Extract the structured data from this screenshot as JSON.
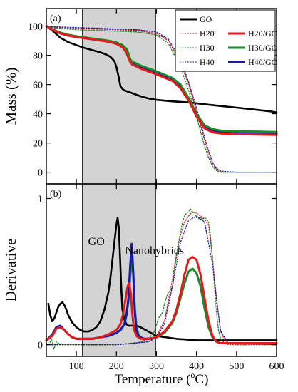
{
  "figure": {
    "x_axis_label_prefix": "Temperature (",
    "x_axis_label_sup": "o",
    "x_axis_label_suffix": "C)",
    "shaded_region": [
      115,
      298
    ],
    "colors": {
      "GO": "#000000",
      "H20": "#e41a1c",
      "H30": "#1a8a2a",
      "H40": "#1a1aaa"
    }
  },
  "chart_data": [
    {
      "type": "line",
      "panel_label": "(a)",
      "ylabel": "Mass (%)",
      "xlim": [
        25,
        600
      ],
      "ylim": [
        -8,
        112
      ],
      "x_ticks": [
        100,
        200,
        300,
        400,
        500,
        600
      ],
      "y_ticks": [
        0,
        20,
        40,
        60,
        80,
        100
      ],
      "grid": false,
      "legend_position": "top-right",
      "legend": [
        {
          "label": "GO",
          "series": "GO"
        },
        {
          "label": "H20",
          "series": "H20"
        },
        {
          "label": "H20/GO",
          "series": "H20/GO"
        },
        {
          "label": "H30",
          "series": "H30"
        },
        {
          "label": "H30/GO",
          "series": "H30/GO"
        },
        {
          "label": "H40",
          "series": "H40"
        },
        {
          "label": "H40/GO",
          "series": "H40/GO"
        }
      ],
      "series": [
        {
          "name": "GO",
          "color": "#000000",
          "style": "solid",
          "x": [
            25,
            40,
            60,
            80,
            100,
            120,
            140,
            160,
            175,
            185,
            195,
            200,
            205,
            210,
            215,
            220,
            240,
            260,
            280,
            300,
            340,
            380,
            420,
            460,
            500,
            540,
            580,
            600
          ],
          "y": [
            100,
            97,
            92,
            89,
            87,
            85,
            83.5,
            82,
            80.5,
            79,
            76,
            72,
            66,
            59,
            57,
            56,
            54,
            52,
            50.5,
            49.5,
            48.5,
            47.8,
            46.5,
            45.3,
            44.2,
            43,
            41.8,
            41
          ]
        },
        {
          "name": "H20",
          "color": "#e41a1c",
          "style": "dotted",
          "x": [
            25,
            50,
            100,
            200,
            250,
            300,
            330,
            360,
            380,
            400,
            410,
            420,
            430,
            440,
            450,
            460,
            470,
            500,
            600
          ],
          "y": [
            100,
            99,
            98.5,
            97.5,
            97,
            95,
            90,
            75,
            60,
            42,
            32,
            22,
            13,
            6,
            2,
            0.5,
            0,
            0,
            0
          ]
        },
        {
          "name": "H30",
          "color": "#1a8a2a",
          "style": "dotted",
          "x": [
            25,
            50,
            100,
            200,
            250,
            300,
            330,
            360,
            380,
            400,
            410,
            420,
            430,
            440,
            450,
            460,
            470,
            500,
            600
          ],
          "y": [
            100,
            98.5,
            97.5,
            96.5,
            96,
            94,
            88,
            72,
            56,
            38,
            28,
            18,
            10,
            4,
            1,
            0,
            0,
            0,
            0
          ]
        },
        {
          "name": "H40",
          "color": "#1a1aaa",
          "style": "dotted",
          "x": [
            25,
            50,
            100,
            200,
            250,
            300,
            330,
            360,
            380,
            400,
            410,
            420,
            430,
            440,
            450,
            460,
            470,
            500,
            600
          ],
          "y": [
            100,
            99.5,
            99,
            98,
            97.5,
            96,
            91,
            77,
            62,
            44,
            34,
            24,
            15,
            7,
            2.5,
            1,
            0.5,
            0,
            0
          ]
        },
        {
          "name": "H40/GO",
          "color": "#1a1aaa",
          "style": "solid",
          "x": [
            25,
            40,
            60,
            80,
            100,
            140,
            180,
            200,
            215,
            225,
            230,
            235,
            240,
            245,
            260,
            300,
            340,
            360,
            380,
            390,
            400,
            420,
            440,
            460,
            500,
            550,
            600
          ],
          "y": [
            100,
            97.5,
            95,
            93.5,
            92.5,
            91,
            89.5,
            88,
            86,
            83.5,
            80,
            76,
            74.5,
            74,
            72,
            68,
            63.5,
            59,
            50,
            45,
            39,
            31,
            28.5,
            27.5,
            27,
            26.8,
            26.5
          ]
        },
        {
          "name": "H30/GO",
          "color": "#1a8a2a",
          "style": "solid",
          "x": [
            25,
            40,
            60,
            80,
            100,
            140,
            180,
            200,
            215,
            225,
            230,
            235,
            240,
            245,
            260,
            300,
            340,
            360,
            380,
            390,
            400,
            420,
            440,
            460,
            500,
            550,
            600
          ],
          "y": [
            100,
            97.8,
            95.5,
            94,
            93,
            91.5,
            90,
            88.8,
            87,
            84.5,
            81,
            77,
            75.5,
            75,
            73,
            69,
            64.5,
            60,
            51,
            45.5,
            40,
            32,
            29.5,
            28.5,
            28,
            27.8,
            27.5
          ]
        },
        {
          "name": "H20/GO",
          "color": "#e41a1c",
          "style": "solid",
          "x": [
            25,
            40,
            60,
            80,
            100,
            140,
            180,
            200,
            215,
            225,
            230,
            235,
            240,
            245,
            260,
            300,
            340,
            360,
            380,
            390,
            400,
            420,
            440,
            460,
            500,
            550,
            600
          ],
          "y": [
            100,
            97.5,
            95,
            93.5,
            92.5,
            91,
            89.3,
            87.8,
            85.5,
            82,
            78,
            75,
            73.5,
            73,
            71,
            67,
            62.5,
            57.5,
            49,
            44,
            38,
            30,
            27.3,
            26.5,
            26,
            25.8,
            25.5
          ]
        }
      ]
    },
    {
      "type": "line",
      "panel_label": "(b)",
      "ylabel": "Derivative",
      "xlim": [
        25,
        600
      ],
      "ylim": [
        -0.08,
        1.1
      ],
      "x_ticks": [
        100,
        200,
        300,
        400,
        500,
        600
      ],
      "y_ticks": [
        0,
        1
      ],
      "grid": false,
      "annotations": [
        {
          "text": "GO",
          "x": 150,
          "y": 0.68
        },
        {
          "text": "Nanohybrids",
          "x": 295,
          "y": 0.62
        }
      ],
      "series": [
        {
          "name": "GO",
          "color": "#000000",
          "style": "solid",
          "x": [
            30,
            35,
            40,
            45,
            50,
            55,
            60,
            65,
            70,
            75,
            80,
            90,
            100,
            110,
            120,
            130,
            140,
            150,
            160,
            170,
            180,
            185,
            190,
            195,
            200,
            203,
            206,
            209,
            212,
            215,
            220,
            225,
            230,
            240,
            250,
            260,
            280,
            300,
            350,
            400,
            450,
            500,
            550,
            600
          ],
          "y": [
            0.28,
            0.2,
            0.16,
            0.18,
            0.22,
            0.26,
            0.28,
            0.29,
            0.27,
            0.24,
            0.2,
            0.15,
            0.12,
            0.1,
            0.09,
            0.09,
            0.1,
            0.12,
            0.16,
            0.24,
            0.36,
            0.46,
            0.58,
            0.7,
            0.82,
            0.87,
            0.8,
            0.6,
            0.4,
            0.24,
            0.17,
            0.14,
            0.13,
            0.13,
            0.13,
            0.12,
            0.09,
            0.06,
            0.04,
            0.03,
            0.03,
            0.03,
            0.03,
            0.03
          ]
        },
        {
          "name": "H20",
          "color": "#e41a1c",
          "style": "dotted",
          "x": [
            25,
            100,
            200,
            280,
            300,
            320,
            340,
            350,
            360,
            370,
            380,
            390,
            400,
            410,
            420,
            430,
            440,
            450,
            460,
            470,
            480,
            500,
            600
          ],
          "y": [
            0.0,
            0.0,
            0.0,
            0.02,
            0.06,
            0.16,
            0.45,
            0.62,
            0.75,
            0.84,
            0.88,
            0.91,
            0.9,
            0.88,
            0.86,
            0.82,
            0.6,
            0.3,
            0.1,
            0.03,
            0.01,
            0.0,
            0.0
          ]
        },
        {
          "name": "H30",
          "color": "#1a8a2a",
          "style": "dotted",
          "x": [
            25,
            32,
            38,
            44,
            50,
            60,
            80,
            100,
            150,
            200,
            250,
            280,
            295,
            305,
            315,
            322,
            330,
            335,
            340,
            345,
            350,
            355,
            360,
            365,
            370,
            375,
            380,
            385,
            390,
            395,
            400,
            405,
            410,
            415,
            420,
            425,
            430,
            435,
            440,
            445,
            450,
            455,
            460,
            470,
            480,
            500,
            550,
            600
          ],
          "y": [
            0.0,
            0.0,
            0.04,
            -0.03,
            0.02,
            0.0,
            0.0,
            0.0,
            0.0,
            0.0,
            0.01,
            0.04,
            0.09,
            0.18,
            0.22,
            0.3,
            0.36,
            0.37,
            0.4,
            0.52,
            0.6,
            0.7,
            0.77,
            0.84,
            0.88,
            0.9,
            0.91,
            0.93,
            0.9,
            0.91,
            0.87,
            0.86,
            0.87,
            0.86,
            0.87,
            0.86,
            0.84,
            0.74,
            0.58,
            0.4,
            0.22,
            0.1,
            0.04,
            0.01,
            0.0,
            0.0,
            0.0,
            0.0
          ]
        },
        {
          "name": "H40",
          "color": "#1a1aaa",
          "style": "dotted",
          "x": [
            25,
            100,
            200,
            280,
            300,
            320,
            340,
            360,
            380,
            400,
            420,
            440,
            460,
            480,
            600
          ],
          "y": [
            0.0,
            0.0,
            0.0,
            0.02,
            0.05,
            0.14,
            0.4,
            0.7,
            0.85,
            0.88,
            0.84,
            0.55,
            0.09,
            0.01,
            0.0
          ]
        },
        {
          "name": "H30/GO",
          "color": "#1a8a2a",
          "style": "solid",
          "x": [
            25,
            40,
            50,
            60,
            70,
            80,
            90,
            100,
            120,
            140,
            160,
            180,
            200,
            210,
            220,
            225,
            230,
            234,
            238,
            242,
            246,
            250,
            255,
            260,
            270,
            280,
            300,
            320,
            340,
            350,
            360,
            370,
            380,
            390,
            400,
            410,
            420,
            430,
            440,
            450,
            460,
            480,
            500,
            550,
            600
          ],
          "y": [
            0.03,
            0.06,
            0.11,
            0.12,
            0.1,
            0.07,
            0.05,
            0.04,
            0.04,
            0.04,
            0.05,
            0.06,
            0.08,
            0.1,
            0.14,
            0.2,
            0.3,
            0.45,
            0.6,
            0.48,
            0.25,
            0.12,
            0.07,
            0.05,
            0.04,
            0.04,
            0.05,
            0.08,
            0.15,
            0.22,
            0.32,
            0.42,
            0.5,
            0.52,
            0.49,
            0.4,
            0.25,
            0.12,
            0.05,
            0.02,
            0.01,
            0.01,
            0.01,
            0.01,
            0.01
          ]
        },
        {
          "name": "H40/GO",
          "color": "#1a1aaa",
          "style": "solid",
          "x": [
            25,
            40,
            50,
            60,
            70,
            80,
            90,
            100,
            120,
            140,
            160,
            180,
            200,
            210,
            220,
            225,
            230,
            234,
            238,
            242,
            246,
            250,
            255,
            260,
            270,
            280,
            300
          ],
          "y": [
            0.03,
            0.07,
            0.12,
            0.13,
            0.1,
            0.07,
            0.05,
            0.04,
            0.04,
            0.04,
            0.05,
            0.06,
            0.08,
            0.1,
            0.14,
            0.2,
            0.32,
            0.52,
            0.69,
            0.5,
            0.22,
            0.1,
            0.06,
            0.05,
            0.04,
            0.04,
            0.05
          ]
        },
        {
          "name": "H20/GO",
          "color": "#e41a1c",
          "style": "solid",
          "x": [
            25,
            40,
            50,
            60,
            70,
            80,
            90,
            100,
            120,
            140,
            160,
            180,
            200,
            210,
            216,
            222,
            228,
            232,
            236,
            240,
            244,
            250,
            260,
            270,
            280,
            300,
            320,
            340,
            350,
            360,
            370,
            380,
            390,
            400,
            410,
            420,
            430,
            440,
            450,
            460,
            480,
            500,
            550,
            600
          ],
          "y": [
            0.03,
            0.06,
            0.11,
            0.12,
            0.1,
            0.07,
            0.05,
            0.04,
            0.04,
            0.04,
            0.05,
            0.07,
            0.1,
            0.14,
            0.2,
            0.3,
            0.4,
            0.42,
            0.35,
            0.2,
            0.1,
            0.06,
            0.04,
            0.04,
            0.04,
            0.05,
            0.09,
            0.16,
            0.24,
            0.35,
            0.48,
            0.58,
            0.6,
            0.58,
            0.48,
            0.32,
            0.16,
            0.06,
            0.02,
            0.01,
            0.01,
            0.01,
            0.01,
            0.01
          ]
        }
      ]
    }
  ]
}
